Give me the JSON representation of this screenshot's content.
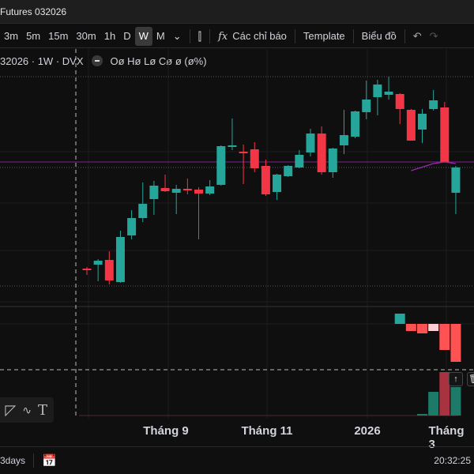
{
  "window": {
    "title": "Futures 032026"
  },
  "toolbar": {
    "intervals": [
      "3m",
      "5m",
      "15m",
      "30m",
      "1h",
      "D",
      "W",
      "M"
    ],
    "active_interval": "W",
    "indicators_label": "Các chỉ báo",
    "template_label": "Template",
    "chart_label": "Biểu đồ"
  },
  "legend": {
    "symbol": "32026 · 1W · DVX",
    "ohlc": "Oø Hø Lø Cø ø (ø%)"
  },
  "time_axis": {
    "labels": [
      "Tháng 9",
      "Tháng 11",
      "2026",
      "Tháng 3"
    ]
  },
  "bottom": {
    "range_label": "3days",
    "clock": "20:32:25"
  },
  "colors": {
    "up": "#26a69a",
    "down": "#f23645",
    "ma": "#9c27b0",
    "hist_up": "#26a69a",
    "hist_down": "#ff5252",
    "hist_light": "#ffcdd2"
  },
  "chart_data": {
    "type": "candlestick",
    "candles": [
      [
        60,
        62,
        52,
        59
      ],
      [
        65,
        72,
        44,
        70
      ],
      [
        71,
        82,
        40,
        45
      ],
      [
        43,
        108,
        42,
        100
      ],
      [
        102,
        134,
        97,
        124
      ],
      [
        124,
        169,
        119,
        142
      ],
      [
        148,
        171,
        128,
        165
      ],
      [
        162,
        179,
        157,
        158
      ],
      [
        156,
        166,
        129,
        161
      ],
      [
        161,
        174,
        154,
        160
      ],
      [
        160,
        163,
        97,
        155
      ],
      [
        155,
        172,
        153,
        164
      ],
      [
        166,
        216,
        165,
        215
      ],
      [
        214,
        250,
        210,
        216
      ],
      [
        208,
        217,
        167,
        207
      ],
      [
        211,
        220,
        182,
        187
      ],
      [
        190,
        198,
        152,
        154
      ],
      [
        157,
        180,
        147,
        179
      ],
      [
        177,
        191,
        176,
        190
      ],
      [
        188,
        210,
        187,
        204
      ],
      [
        207,
        237,
        202,
        231
      ],
      [
        231,
        240,
        179,
        182
      ],
      [
        182,
        213,
        175,
        212
      ],
      [
        216,
        261,
        205,
        229
      ],
      [
        227,
        260,
        225,
        259
      ],
      [
        258,
        298,
        249,
        274
      ],
      [
        277,
        299,
        254,
        293
      ],
      [
        280,
        303,
        274,
        284
      ],
      [
        281,
        282,
        243,
        262
      ],
      [
        261,
        262,
        222,
        222
      ],
      [
        236,
        262,
        219,
        256
      ],
      [
        262,
        286,
        260,
        273
      ],
      [
        264,
        271,
        194,
        195
      ],
      [
        156,
        190,
        129,
        188
      ]
    ],
    "ma": [
      [
        29,
        184
      ],
      [
        31,
        193
      ],
      [
        32,
        195
      ],
      [
        33,
        193
      ]
    ],
    "histogram": [
      [
        28,
        13,
        "up"
      ],
      [
        29,
        -9,
        "down"
      ],
      [
        30,
        -12,
        "down"
      ],
      [
        31,
        -9,
        "light"
      ],
      [
        32,
        -33,
        "down"
      ],
      [
        33,
        -48,
        "down"
      ]
    ],
    "volume": [
      [
        30,
        2,
        "up"
      ],
      [
        31,
        30,
        "up"
      ],
      [
        32,
        55,
        "down"
      ],
      [
        33,
        36,
        "up"
      ]
    ]
  }
}
